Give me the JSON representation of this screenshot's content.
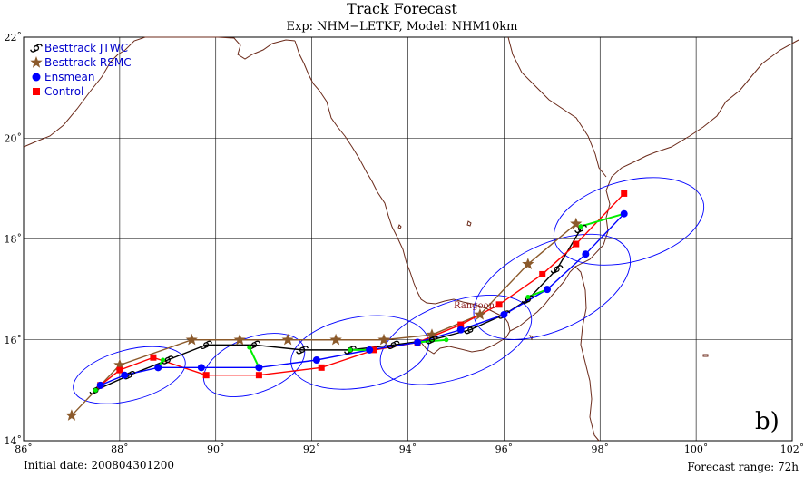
{
  "title": "Track Forecast",
  "subtitle": "Exp: NHM−LETKF, Model: NHM10km",
  "initial_date": "Initial date: 200804301200",
  "forecast_range": "Forecast range: 72h",
  "panel_label": "b)",
  "place_label": "Rangoon",
  "legend": [
    {
      "label": "Besttrack JTWC",
      "color": "#000000",
      "marker": "typhoon-symbol"
    },
    {
      "label": "Besttrack RSMC",
      "color": "#8b5a2b",
      "marker": "star"
    },
    {
      "label": "Ensmean",
      "color": "#0000ff",
      "marker": "circle"
    },
    {
      "label": "Control",
      "color": "#ff0000",
      "marker": "square"
    }
  ],
  "colors": {
    "coast": "#6b2a1a",
    "grid": "#000000",
    "ellipse": "#0000ff",
    "spread": "#00ee00",
    "rsmc": "#8b5a2b"
  },
  "chart_data": {
    "type": "map",
    "xlim": [
      86,
      102
    ],
    "ylim": [
      14,
      22
    ],
    "xticks": [
      "86˚",
      "88˚",
      "90˚",
      "92˚",
      "94˚",
      "96˚",
      "98˚",
      "100˚",
      "102˚"
    ],
    "yticks": [
      "14˚",
      "16˚",
      "18˚",
      "20˚",
      "22˚"
    ],
    "tracks": {
      "jtwc": [
        [
          87.5,
          15.0
        ],
        [
          88.2,
          15.3
        ],
        [
          89.0,
          15.6
        ],
        [
          89.8,
          15.9
        ],
        [
          90.8,
          15.9
        ],
        [
          91.8,
          15.8
        ],
        [
          92.8,
          15.8
        ],
        [
          93.7,
          15.9
        ],
        [
          94.5,
          16.0
        ],
        [
          95.3,
          16.2
        ],
        [
          96.0,
          16.5
        ],
        [
          96.5,
          16.8
        ],
        [
          97.1,
          17.4
        ],
        [
          97.6,
          18.2
        ]
      ],
      "rsmc": [
        [
          87.0,
          14.5
        ],
        [
          88.0,
          15.5
        ],
        [
          89.5,
          16.0
        ],
        [
          90.5,
          16.0
        ],
        [
          91.5,
          16.0
        ],
        [
          92.5,
          16.0
        ],
        [
          93.5,
          16.0
        ],
        [
          94.5,
          16.1
        ],
        [
          95.5,
          16.5
        ],
        [
          96.5,
          17.5
        ],
        [
          97.5,
          18.3
        ]
      ],
      "ensmean": [
        [
          87.6,
          15.1
        ],
        [
          88.1,
          15.3
        ],
        [
          88.8,
          15.45
        ],
        [
          89.7,
          15.45
        ],
        [
          90.9,
          15.45
        ],
        [
          92.1,
          15.6
        ],
        [
          93.2,
          15.8
        ],
        [
          94.2,
          15.95
        ],
        [
          95.1,
          16.2
        ],
        [
          96.0,
          16.5
        ],
        [
          96.9,
          17.0
        ],
        [
          97.7,
          17.7
        ],
        [
          98.5,
          18.5
        ]
      ],
      "control": [
        [
          87.6,
          15.1
        ],
        [
          88.0,
          15.4
        ],
        [
          88.7,
          15.65
        ],
        [
          89.8,
          15.3
        ],
        [
          90.9,
          15.3
        ],
        [
          92.2,
          15.45
        ],
        [
          93.3,
          15.8
        ],
        [
          94.2,
          15.95
        ],
        [
          95.1,
          16.3
        ],
        [
          95.9,
          16.7
        ],
        [
          96.8,
          17.3
        ],
        [
          97.5,
          17.9
        ],
        [
          98.5,
          18.9
        ]
      ],
      "spread_points": [
        [
          87.5,
          15.0
        ],
        [
          88.9,
          15.6
        ],
        [
          90.7,
          15.85
        ],
        [
          92.8,
          15.8
        ],
        [
          94.8,
          16.0
        ],
        [
          96.5,
          16.85
        ],
        [
          97.6,
          18.25
        ]
      ],
      "spread_pairs": [
        [
          [
            87.5,
            15.0
          ],
          [
            87.6,
            15.1
          ]
        ],
        [
          [
            88.9,
            15.6
          ],
          [
            88.8,
            15.45
          ]
        ],
        [
          [
            90.7,
            15.85
          ],
          [
            90.9,
            15.45
          ]
        ],
        [
          [
            92.8,
            15.8
          ],
          [
            93.2,
            15.8
          ]
        ],
        [
          [
            94.8,
            16.0
          ],
          [
            94.2,
            15.95
          ]
        ],
        [
          [
            96.5,
            16.85
          ],
          [
            96.9,
            17.0
          ]
        ],
        [
          [
            97.6,
            18.25
          ],
          [
            98.5,
            18.5
          ]
        ]
      ]
    },
    "ellipses": [
      {
        "cx": 88.2,
        "cy": 15.3,
        "rx": 1.2,
        "ry": 0.5,
        "angle": -15
      },
      {
        "cx": 90.8,
        "cy": 15.5,
        "rx": 1.1,
        "ry": 0.55,
        "angle": -20
      },
      {
        "cx": 93.0,
        "cy": 15.75,
        "rx": 1.45,
        "ry": 0.7,
        "angle": -10
      },
      {
        "cx": 95.0,
        "cy": 16.0,
        "rx": 1.65,
        "ry": 0.75,
        "angle": -20
      },
      {
        "cx": 97.0,
        "cy": 17.05,
        "rx": 1.75,
        "ry": 0.85,
        "angle": -25
      },
      {
        "cx": 98.6,
        "cy": 18.35,
        "rx": 1.6,
        "ry": 0.8,
        "angle": -15
      }
    ]
  }
}
